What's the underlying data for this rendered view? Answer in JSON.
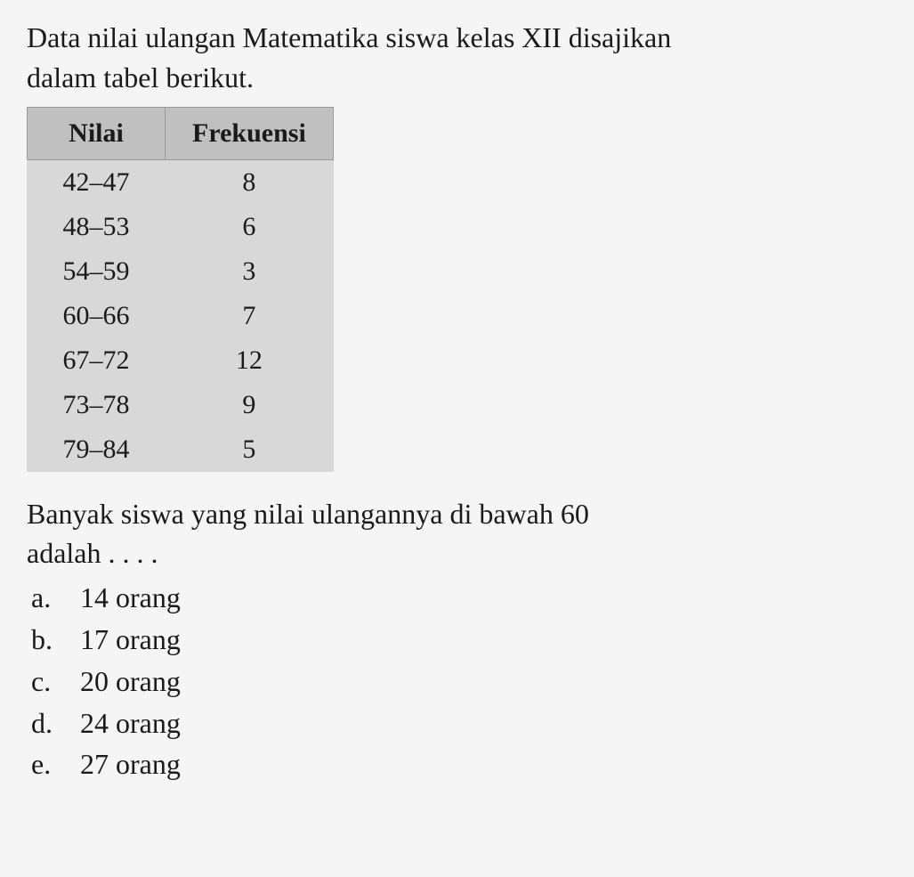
{
  "question": {
    "line1": "Data nilai ulangan Matematika siswa kelas XII disajikan",
    "line2": "dalam tabel berikut."
  },
  "table": {
    "type": "table",
    "header_background": "#c0c0c0",
    "body_background": "#d8d8d8",
    "border_color": "#999999",
    "font_size": 30,
    "columns": [
      "Nilai",
      "Frekuensi"
    ],
    "rows": [
      [
        "42–47",
        "8"
      ],
      [
        "48–53",
        "6"
      ],
      [
        "54–59",
        "3"
      ],
      [
        "60–66",
        "7"
      ],
      [
        "67–72",
        "12"
      ],
      [
        "73–78",
        "9"
      ],
      [
        "79–84",
        "5"
      ]
    ]
  },
  "prompt": {
    "line1": "Banyak siswa yang nilai ulangannya di bawah 60",
    "line2": "adalah . . . ."
  },
  "options": [
    {
      "letter": "a.",
      "text": "14 orang"
    },
    {
      "letter": "b.",
      "text": "17 orang"
    },
    {
      "letter": "c.",
      "text": "20 orang"
    },
    {
      "letter": "d.",
      "text": "24 orang"
    },
    {
      "letter": "e.",
      "text": "27 orang"
    }
  ],
  "colors": {
    "page_background": "#f5f5f5",
    "text_color": "#1a1a1a"
  },
  "typography": {
    "body_font_size": 32,
    "font_family": "Times New Roman"
  }
}
